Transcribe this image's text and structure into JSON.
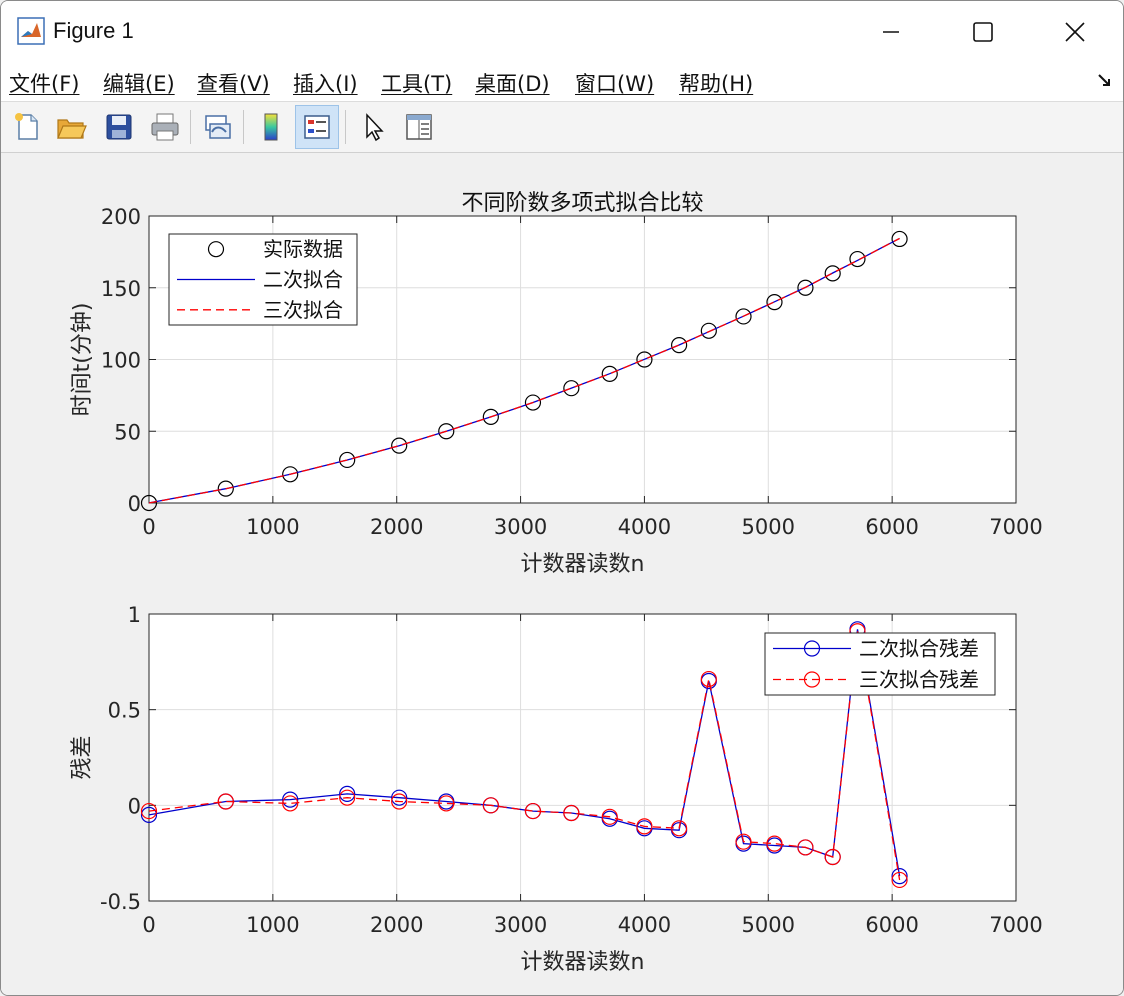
{
  "window": {
    "title": "Figure 1"
  },
  "menu": {
    "items": [
      {
        "label": "文件(F)"
      },
      {
        "label": "编辑(E)"
      },
      {
        "label": "查看(V)"
      },
      {
        "label": "插入(I)"
      },
      {
        "label": "工具(T)"
      },
      {
        "label": "桌面(D)"
      },
      {
        "label": "窗口(W)"
      },
      {
        "label": "帮助(H)"
      }
    ]
  },
  "toolbar": {
    "icons": [
      "new-figure-icon",
      "open-file-icon",
      "save-icon",
      "print-icon",
      "link-plot-icon",
      "colorbar-icon",
      "legend-icon",
      "pointer-icon",
      "property-inspector-icon"
    ]
  },
  "chart_data": [
    {
      "type": "line",
      "title": "不同阶数多项式拟合比较",
      "xlabel": "计数器读数n",
      "ylabel": "时间t(分钟)",
      "xlim": [
        0,
        7000
      ],
      "ylim": [
        0,
        200
      ],
      "xticks": [
        "0",
        "1000",
        "2000",
        "3000",
        "4000",
        "5000",
        "6000",
        "7000"
      ],
      "yticks": [
        "0",
        "50",
        "100",
        "150",
        "200"
      ],
      "grid": true,
      "legend_position": "top-left",
      "series": [
        {
          "name": "实际数据",
          "style": "markers",
          "color": "#000000",
          "x": [
            0,
            620,
            1140,
            1600,
            2020,
            2400,
            2760,
            3100,
            3410,
            3720,
            4000,
            4280,
            4520,
            4800,
            5050,
            5300,
            5520,
            5720,
            6060
          ],
          "y": [
            0,
            10,
            20,
            30,
            40,
            50,
            60,
            70,
            80,
            90,
            100,
            110,
            120,
            130,
            140,
            150,
            160,
            170,
            184
          ]
        },
        {
          "name": "二次拟合",
          "style": "solid",
          "color": "#0000cc",
          "x": [
            0,
            620,
            1140,
            1600,
            2020,
            2400,
            2760,
            3100,
            3410,
            3720,
            4000,
            4280,
            4520,
            4800,
            5050,
            5300,
            5520,
            5720,
            6060
          ],
          "y": [
            0.05,
            9.98,
            19.97,
            29.94,
            39.96,
            49.98,
            60.0,
            70.03,
            80.04,
            90.07,
            100.12,
            110.13,
            119.35,
            130.2,
            140.21,
            150.22,
            160.27,
            169.08,
            184.37
          ]
        },
        {
          "name": "三次拟合",
          "style": "dashed",
          "color": "#ff0000",
          "x": [
            0,
            620,
            1140,
            1600,
            2020,
            2400,
            2760,
            3100,
            3410,
            3720,
            4000,
            4280,
            4520,
            4800,
            5050,
            5300,
            5520,
            5720,
            6060
          ],
          "y": [
            0.03,
            9.98,
            19.99,
            29.96,
            39.98,
            49.99,
            60.0,
            70.03,
            80.04,
            90.06,
            100.11,
            110.12,
            119.34,
            130.19,
            140.2,
            150.22,
            160.27,
            169.09,
            184.39
          ]
        }
      ]
    },
    {
      "type": "line",
      "title": "",
      "xlabel": "计数器读数n",
      "ylabel": "残差",
      "xlim": [
        0,
        7000
      ],
      "ylim": [
        -0.5,
        1
      ],
      "xticks": [
        "0",
        "1000",
        "2000",
        "3000",
        "4000",
        "5000",
        "6000",
        "7000"
      ],
      "yticks": [
        "-0.5",
        "0",
        "0.5",
        "1"
      ],
      "grid": true,
      "legend_position": "top-right",
      "series": [
        {
          "name": "二次拟合残差",
          "style": "solid-circles",
          "color": "#0000cc",
          "x": [
            0,
            620,
            1140,
            1600,
            2020,
            2400,
            2760,
            3100,
            3410,
            3720,
            4000,
            4280,
            4520,
            4800,
            5050,
            5300,
            5520,
            5720,
            6060
          ],
          "y": [
            -0.05,
            0.02,
            0.03,
            0.06,
            0.04,
            0.02,
            0.0,
            -0.03,
            -0.04,
            -0.07,
            -0.12,
            -0.13,
            0.65,
            -0.2,
            -0.21,
            -0.22,
            -0.27,
            0.92,
            -0.37
          ]
        },
        {
          "name": "三次拟合残差",
          "style": "dashed-circles",
          "color": "#ff0000",
          "x": [
            0,
            620,
            1140,
            1600,
            2020,
            2400,
            2760,
            3100,
            3410,
            3720,
            4000,
            4280,
            4520,
            4800,
            5050,
            5300,
            5520,
            5720,
            6060
          ],
          "y": [
            -0.03,
            0.02,
            0.01,
            0.04,
            0.02,
            0.01,
            0.0,
            -0.03,
            -0.04,
            -0.06,
            -0.11,
            -0.12,
            0.66,
            -0.19,
            -0.2,
            -0.22,
            -0.27,
            0.91,
            -0.39
          ]
        }
      ]
    }
  ]
}
